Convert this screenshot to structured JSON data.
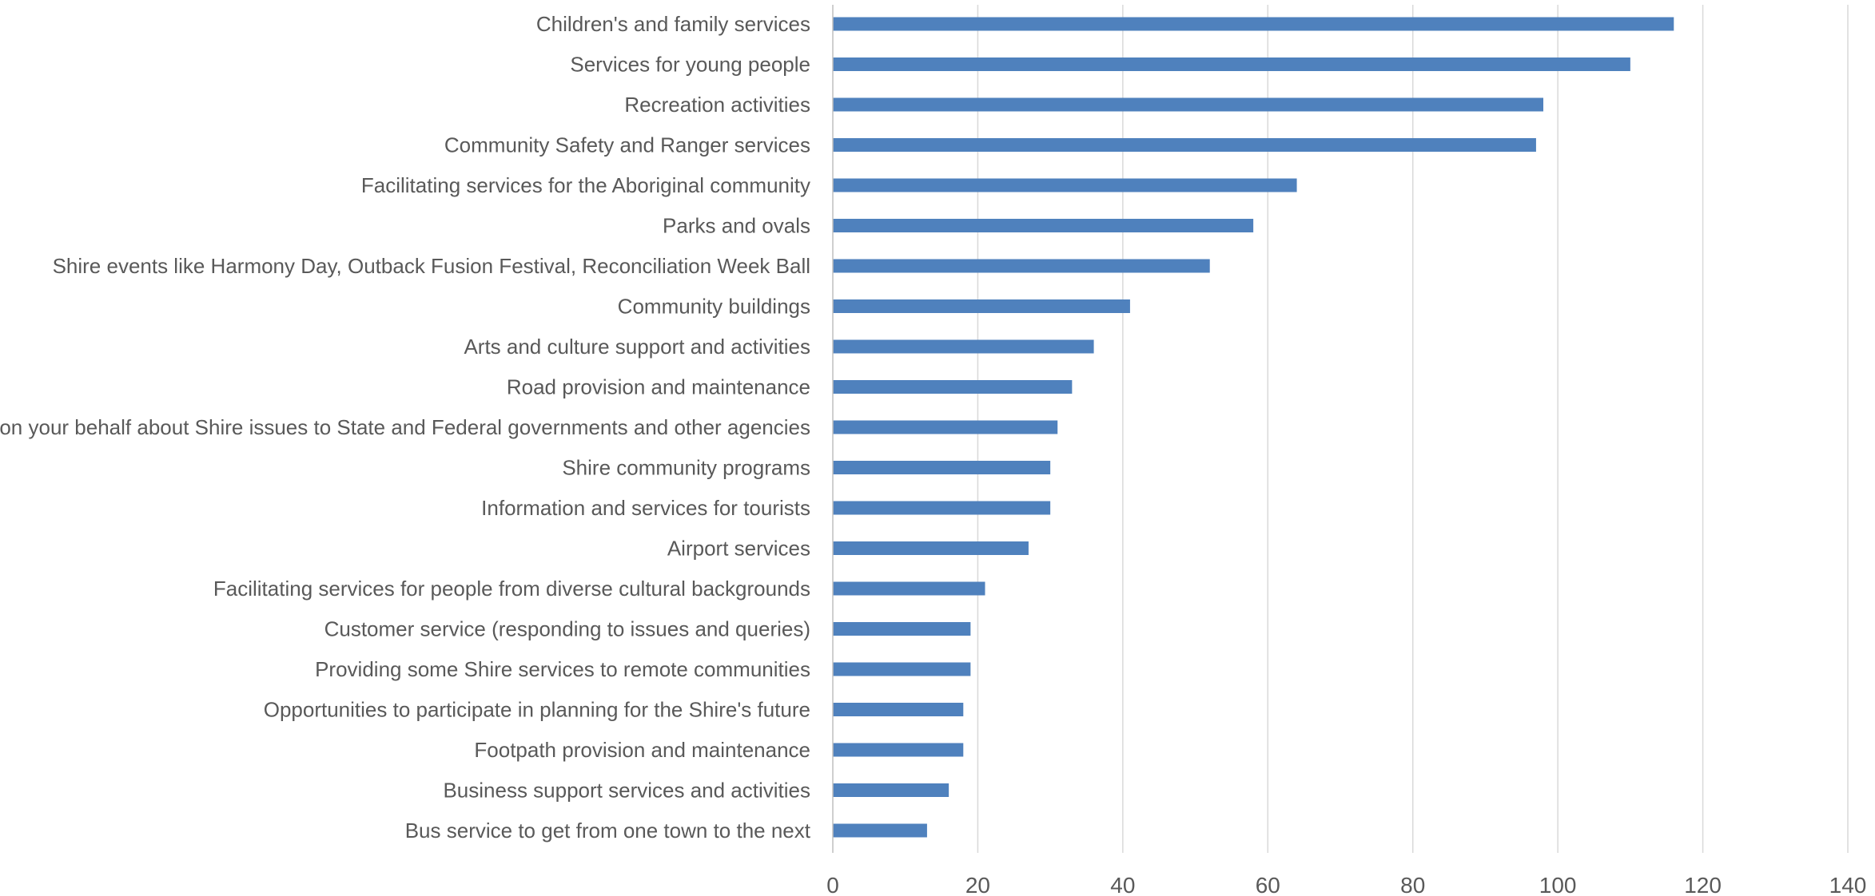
{
  "chart_data": {
    "type": "bar",
    "orientation": "horizontal",
    "title": "",
    "xlabel": "",
    "ylabel": "",
    "xlim": [
      0,
      140
    ],
    "x_ticks": [
      0,
      20,
      40,
      60,
      80,
      100,
      120,
      140
    ],
    "grid": true,
    "legend": "none",
    "bar_color": "#4f81bd",
    "categories": [
      "Children's and family services",
      "Services for young people",
      "Recreation activities",
      "Community Safety and Ranger services",
      "Facilitating services for the Aboriginal community",
      "Parks and ovals",
      "Shire events like Harmony Day, Outback Fusion Festival, Reconciliation Week Ball",
      "Community buildings",
      "Arts and culture support and activities",
      "Road provision and maintenance",
      "Advocacy on your behalf about Shire issues to State and Federal governments and other agencies",
      "Shire community programs",
      "Information and services for tourists",
      "Airport services",
      "Facilitating services for people from diverse cultural backgrounds",
      "Customer service (responding to issues and queries)",
      "Providing some Shire services to remote communities",
      "Opportunities to participate in planning for the Shire's future",
      "Footpath provision and maintenance",
      "Business support services and activities",
      "Bus service to get from one town to the next"
    ],
    "values": [
      116,
      110,
      98,
      97,
      64,
      58,
      52,
      41,
      36,
      33,
      31,
      30,
      30,
      27,
      21,
      19,
      19,
      18,
      18,
      16,
      13
    ]
  }
}
